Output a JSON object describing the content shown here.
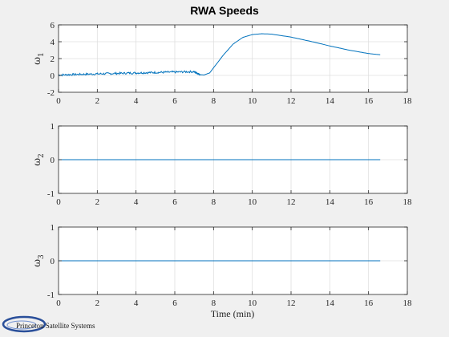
{
  "figure": {
    "title": "RWA Speeds",
    "xlabel": "Time (min)",
    "logo_text": "Princeton Satellite Systems"
  },
  "chart_data": [
    {
      "type": "line",
      "ylabel": {
        "symbol": "ω",
        "subscript": "1"
      },
      "xlim": [
        0,
        18
      ],
      "ylim": [
        -2,
        6
      ],
      "xticks": [
        0,
        2,
        4,
        6,
        8,
        10,
        12,
        14,
        16,
        18
      ],
      "yticks": [
        -2,
        0,
        2,
        4,
        6
      ],
      "grid": true,
      "color": "#0072bd",
      "series": [
        {
          "noise_amplitude": 0.12,
          "x": [
            0,
            1,
            2,
            3,
            4,
            5,
            6,
            7,
            7.3,
            7.5,
            7.8,
            8.0,
            8.5,
            9.0,
            9.5,
            10.0,
            10.5,
            11.0,
            12.0,
            13.0,
            14.0,
            15.0,
            16.0,
            16.6
          ],
          "y": [
            0.05,
            0.12,
            0.18,
            0.24,
            0.3,
            0.35,
            0.4,
            0.45,
            0.1,
            0.05,
            0.3,
            0.9,
            2.4,
            3.7,
            4.5,
            4.85,
            4.95,
            4.9,
            4.55,
            4.05,
            3.5,
            3.0,
            2.6,
            2.45
          ]
        }
      ]
    },
    {
      "type": "line",
      "ylabel": {
        "symbol": "ω",
        "subscript": "2"
      },
      "xlim": [
        0,
        18
      ],
      "ylim": [
        -1,
        1
      ],
      "xticks": [
        0,
        2,
        4,
        6,
        8,
        10,
        12,
        14,
        16,
        18
      ],
      "yticks": [
        -1,
        0,
        1
      ],
      "grid": true,
      "color": "#0072bd",
      "series": [
        {
          "x": [
            0,
            16.6
          ],
          "y": [
            0,
            0
          ]
        }
      ]
    },
    {
      "type": "line",
      "ylabel": {
        "symbol": "ω",
        "subscript": "3"
      },
      "xlim": [
        0,
        18
      ],
      "ylim": [
        -1,
        1
      ],
      "xticks": [
        0,
        2,
        4,
        6,
        8,
        10,
        12,
        14,
        16,
        18
      ],
      "yticks": [
        -1,
        0,
        1
      ],
      "grid": true,
      "color": "#0072bd",
      "series": [
        {
          "x": [
            0,
            16.6
          ],
          "y": [
            0,
            0
          ]
        }
      ]
    }
  ]
}
